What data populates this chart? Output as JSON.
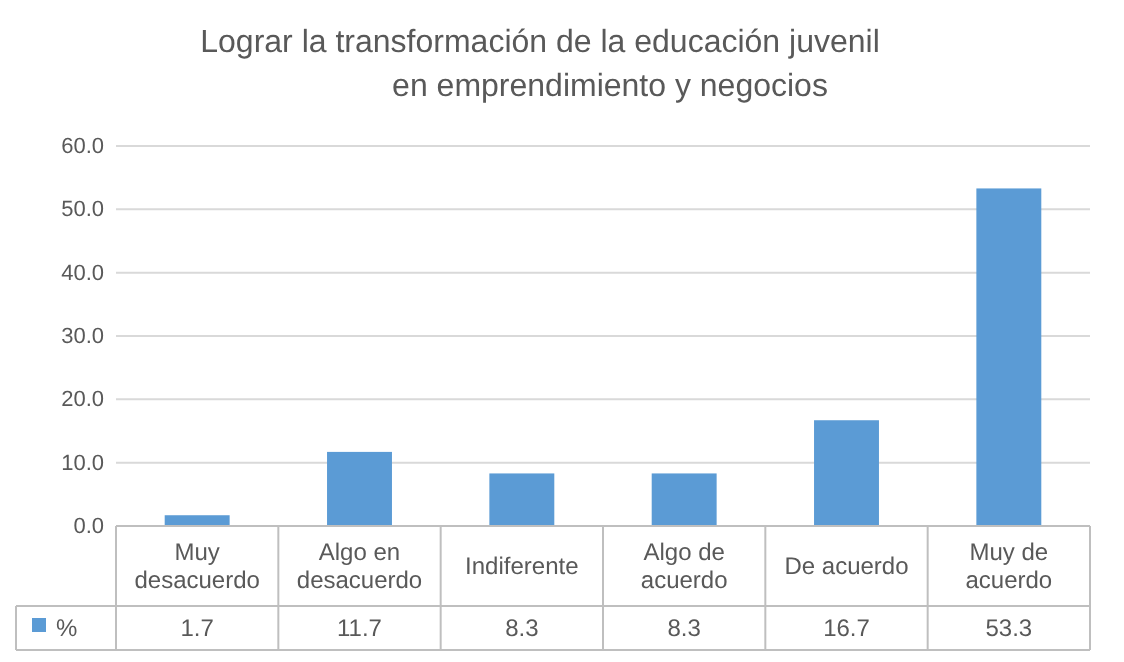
{
  "chart_data": {
    "type": "bar",
    "title": "Lograr la transformación de la educación juvenil\nen emprendimiento y negocios",
    "categories": [
      "Muy desacuerdo",
      "Algo en desacuerdo",
      "Indiferente",
      "Algo de acuerdo",
      "De acuerdo",
      "Muy de acuerdo"
    ],
    "series": [
      {
        "name": "%",
        "color": "#5b9bd5",
        "values": [
          1.7,
          11.7,
          8.3,
          8.3,
          16.7,
          53.3
        ]
      }
    ],
    "ylim": [
      0,
      60
    ],
    "yticks": [
      {
        "value": 0,
        "label": "0.0"
      },
      {
        "value": 10,
        "label": "10.0"
      },
      {
        "value": 20,
        "label": "20.0"
      },
      {
        "value": 30,
        "label": "30.0"
      },
      {
        "value": 40,
        "label": "40.0"
      },
      {
        "value": 50,
        "label": "50.0"
      },
      {
        "value": 60,
        "label": "60.0"
      }
    ],
    "grid": "y",
    "legend": "bottom",
    "data_labels": true
  }
}
